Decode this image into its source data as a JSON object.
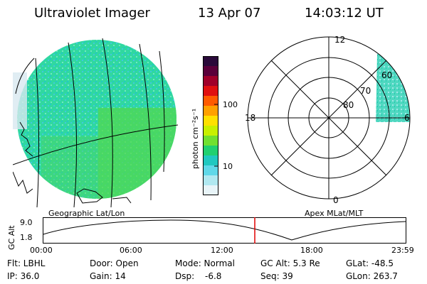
{
  "header": {
    "instrument": "Ultraviolet Imager",
    "date": "13 Apr 07",
    "time": "14:03:12 UT"
  },
  "colorbar": {
    "unit": "photon cm⁻²s⁻¹",
    "ticks": [
      "100",
      "10"
    ],
    "colors": [
      "#2a0a3a",
      "#5a003a",
      "#a0002a",
      "#e01010",
      "#ff5a00",
      "#ffa000",
      "#ffe000",
      "#c8f000",
      "#70e030",
      "#20d070",
      "#20c8c0",
      "#60d8e8",
      "#b0e8f0",
      "#e8f4f8"
    ]
  },
  "left_panel": {
    "caption": "Geographic Lat/Lon"
  },
  "right_panel": {
    "caption": "Apex MLat/MLT",
    "mlt_labels": {
      "top": "12",
      "left": "18",
      "right": "6",
      "bottom": "0"
    },
    "lat_labels": [
      "60",
      "70",
      "80"
    ]
  },
  "altitude_plot": {
    "ylabel": "GC Alt",
    "yticks": [
      "9.0",
      "1.8"
    ],
    "xticks": [
      "00:00",
      "06:00",
      "12:00",
      "18:00",
      "23:59"
    ],
    "current_time_marker": "14:03",
    "marker_color": "#e00000"
  },
  "status": {
    "flt": "Flt: LBHL",
    "ip": "IP: 36.0",
    "door": "Door: Open",
    "gain": "Gain: 14",
    "mode": "Mode: Normal",
    "dsp_label": "Dsp:",
    "dsp_value": "-6.8",
    "gcalt": "GC Alt: 5.3 Re",
    "seq": "Seq: 39",
    "glat": "GLat: -48.5",
    "glon": "GLon: 263.7"
  }
}
